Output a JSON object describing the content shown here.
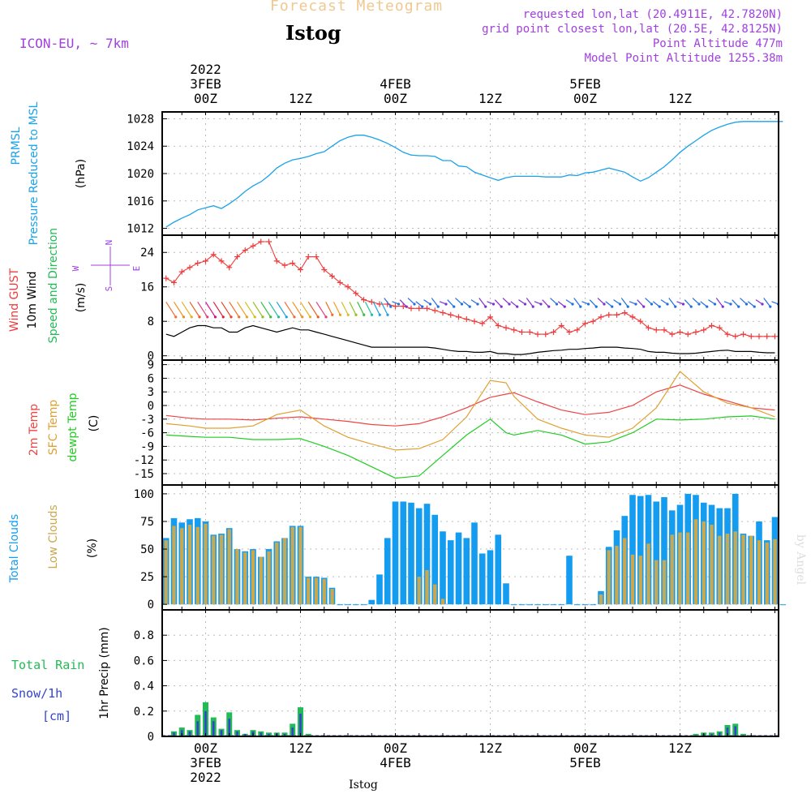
{
  "header": {
    "title": "Forecast Meteogram",
    "station": "Istog",
    "model": "ICON-EU, ~ 7km",
    "requested": "requested lon,lat (20.4911E, 42.7820N)",
    "grid_point": "grid point closest lon,lat (20.5E, 42.8125N)",
    "point_altitude": "Point Altitude 477m",
    "model_altitude": "Model Point Altitude 1255.38m",
    "footer_station": "Istog",
    "credit": "by Angel"
  },
  "colors": {
    "pressure": "#1aa3e8",
    "gust": "#ee3b3b",
    "wind": "#000000",
    "temp2m": "#ee4444",
    "sfc": "#e0a030",
    "dewpt": "#22cc22",
    "total_clouds": "#139cf0",
    "low_clouds": "#c8a850",
    "rain": "#22bb55",
    "snow": "#3344cc",
    "purple": "#a040e0",
    "title": "#f0c890"
  },
  "time_axis": {
    "top_labels": [
      {
        "h": 0,
        "lines": [
          "2022",
          "3FEB",
          "00Z"
        ]
      },
      {
        "h": 12,
        "lines": [
          "12Z"
        ]
      },
      {
        "h": 24,
        "lines": [
          "4FEB",
          "00Z"
        ]
      },
      {
        "h": 36,
        "lines": [
          "12Z"
        ]
      },
      {
        "h": 48,
        "lines": [
          "5FEB",
          "00Z"
        ]
      },
      {
        "h": 60,
        "lines": [
          "12Z"
        ]
      }
    ],
    "bottom_labels": [
      {
        "h": 0,
        "lines": [
          "00Z",
          "3FEB",
          "2022"
        ]
      },
      {
        "h": 12,
        "lines": [
          "12Z"
        ]
      },
      {
        "h": 24,
        "lines": [
          "00Z",
          "4FEB"
        ]
      },
      {
        "h": 36,
        "lines": [
          "12Z"
        ]
      },
      {
        "h": 48,
        "lines": [
          "00Z",
          "5FEB"
        ]
      },
      {
        "h": 60,
        "lines": [
          "12Z"
        ]
      }
    ]
  },
  "chart_data": [
    {
      "type": "line",
      "title": "PRMSL Pressure Reduced to MSL",
      "ylabel": "(hPa)",
      "side_labels": [
        "PRMSL",
        "Pressure Reduced to MSL"
      ],
      "ylim": [
        1011,
        1029
      ],
      "yticks": [
        1012,
        1016,
        1020,
        1024,
        1028
      ],
      "x_hours": [
        -5,
        -4,
        -3,
        -2,
        -1,
        0,
        1,
        2,
        3,
        4,
        5,
        6,
        7,
        8,
        9,
        10,
        11,
        12,
        13,
        14,
        15,
        16,
        17,
        18,
        19,
        20,
        21,
        22,
        23,
        24,
        25,
        26,
        27,
        28,
        29,
        30,
        31,
        32,
        33,
        34,
        35,
        36,
        37,
        38,
        39,
        40,
        41,
        42,
        43,
        44,
        45,
        46,
        47,
        48,
        49,
        50,
        51,
        52,
        53,
        54,
        55,
        56,
        57,
        58,
        59,
        60,
        61,
        62,
        63,
        64,
        65,
        66,
        67,
        68,
        69,
        70,
        71,
        72,
        73
      ],
      "series": [
        {
          "name": "PRMSL",
          "color": "#1aa3e8",
          "values": [
            1012.2,
            1012.9,
            1013.5,
            1014.0,
            1014.7,
            1015.0,
            1015.3,
            1014.9,
            1015.6,
            1016.4,
            1017.4,
            1018.2,
            1018.8,
            1019.7,
            1020.8,
            1021.5,
            1022.0,
            1022.2,
            1022.5,
            1022.9,
            1023.2,
            1024.0,
            1024.8,
            1025.3,
            1025.6,
            1025.6,
            1025.3,
            1024.9,
            1024.4,
            1023.8,
            1023.1,
            1022.7,
            1022.6,
            1022.6,
            1022.5,
            1021.9,
            1021.9,
            1021.1,
            1021.0,
            1020.2,
            1019.8,
            1019.4,
            1019.0,
            1019.4,
            1019.6,
            1019.6,
            1019.6,
            1019.6,
            1019.5,
            1019.5,
            1019.5,
            1019.8,
            1019.7,
            1020.1,
            1020.2,
            1020.5,
            1020.8,
            1020.5,
            1020.2,
            1019.5,
            1018.9,
            1019.4,
            1020.2,
            1021.0,
            1022.0,
            1023.1,
            1024.0,
            1024.8,
            1025.6,
            1026.3,
            1026.8,
            1027.2,
            1027.5,
            1027.6,
            1027.6,
            1027.6,
            1027.6,
            1027.6,
            1027.6
          ]
        }
      ]
    },
    {
      "type": "line",
      "title": "Wind GUST, 10m Wind Speed and Direction",
      "ylabel": "(m/s)",
      "side_labels": [
        "Wind GUST",
        "10m Wind",
        "Speed and Direction"
      ],
      "compass": {
        "n": "N",
        "s": "S",
        "e": "E",
        "w": "W"
      },
      "ylim": [
        -1,
        28
      ],
      "yticks": [
        0,
        8,
        16,
        24
      ],
      "x_hours": [
        -5,
        -4,
        -3,
        -2,
        -1,
        0,
        1,
        2,
        3,
        4,
        5,
        6,
        7,
        8,
        9,
        10,
        11,
        12,
        13,
        14,
        15,
        16,
        17,
        18,
        19,
        20,
        21,
        22,
        23,
        24,
        25,
        26,
        27,
        28,
        29,
        30,
        31,
        32,
        33,
        34,
        35,
        36,
        37,
        38,
        39,
        40,
        41,
        42,
        43,
        44,
        45,
        46,
        47,
        48,
        49,
        50,
        51,
        52,
        53,
        54,
        55,
        56,
        57,
        58,
        59,
        60,
        61,
        62,
        63,
        64,
        65,
        66,
        67,
        68,
        69,
        70,
        71,
        72
      ],
      "series": [
        {
          "name": "Wind GUST",
          "color": "#ee3b3b",
          "values": [
            18,
            17,
            19.5,
            20.5,
            21.5,
            22,
            23.5,
            22,
            20.5,
            23,
            24.5,
            25.5,
            26.5,
            26.5,
            22,
            21,
            21.5,
            20,
            23,
            23,
            20,
            18.5,
            17,
            16,
            14.5,
            13,
            12.5,
            12,
            12,
            11.5,
            11.5,
            11,
            11,
            11,
            10.5,
            10,
            9.5,
            9,
            8.5,
            8,
            7.5,
            9,
            7,
            6.5,
            6,
            5.5,
            5.5,
            5,
            5,
            5.5,
            7,
            5.5,
            6,
            7.5,
            8,
            9,
            9.5,
            9.5,
            10,
            9,
            8,
            6.5,
            6,
            6,
            5,
            5.5,
            5,
            5.5,
            6,
            7,
            6.5,
            5,
            4.5,
            5,
            4.5,
            4.5,
            4.5,
            4.5
          ]
        },
        {
          "name": "10m Wind",
          "color": "#000000",
          "values": [
            5,
            4.5,
            5.5,
            6.5,
            7,
            7,
            6.5,
            6.5,
            5.5,
            5.5,
            6.5,
            7,
            6.5,
            6,
            5.5,
            6,
            6.5,
            6,
            6,
            5.5,
            5,
            4.5,
            4,
            3.5,
            3,
            2.5,
            2,
            2,
            2,
            2,
            2,
            2,
            2,
            2,
            1.8,
            1.5,
            1.2,
            1,
            1,
            0.8,
            0.8,
            1,
            0.5,
            0.5,
            0.3,
            0.3,
            0.5,
            0.8,
            1,
            1.2,
            1.3,
            1.5,
            1.5,
            1.7,
            1.8,
            2,
            2,
            2,
            1.8,
            1.7,
            1.5,
            1,
            0.8,
            0.8,
            0.6,
            0.5,
            0.5,
            0.6,
            0.8,
            1,
            1.2,
            1.3,
            1,
            1,
            1,
            0.8,
            0.7,
            0.7
          ]
        }
      ]
    },
    {
      "type": "line",
      "title": "2m Temp, SFC Temp, dewpt Temp",
      "ylabel": "(C)",
      "side_labels": [
        "2m Temp",
        "SFC Temp",
        "dewpt Temp"
      ],
      "ylim": [
        -17.5,
        10
      ],
      "yticks": [
        -15,
        -12,
        -9,
        -6,
        -3,
        0,
        3,
        6,
        9
      ],
      "x_hours": [
        -5,
        -2,
        0,
        3,
        6,
        9,
        12,
        15,
        18,
        21,
        24,
        27,
        30,
        33,
        36,
        38,
        39,
        42,
        45,
        48,
        51,
        54,
        57,
        60,
        63,
        66,
        69,
        72
      ],
      "series": [
        {
          "name": "2m Temp",
          "color": "#ee4444",
          "values": [
            -2.2,
            -2.8,
            -3,
            -3,
            -3.2,
            -2.8,
            -2.5,
            -3,
            -3.5,
            -4.2,
            -4.5,
            -4,
            -2.5,
            -0.5,
            1.8,
            2.5,
            2.8,
            0.8,
            -1,
            -2,
            -1.5,
            0,
            3,
            4.5,
            2.5,
            1,
            -0.5,
            -1
          ]
        },
        {
          "name": "SFC Temp",
          "color": "#e0a030",
          "values": [
            -4,
            -4.5,
            -5,
            -5,
            -4.5,
            -2,
            -1,
            -4.5,
            -7,
            -8.5,
            -9.8,
            -9.5,
            -7.5,
            -2.5,
            5.5,
            5,
            2,
            -3,
            -5,
            -6.5,
            -7,
            -5,
            -0.5,
            7.5,
            3,
            0.5,
            -0.5,
            -2.5
          ]
        },
        {
          "name": "dewpt Temp",
          "color": "#22cc22",
          "values": [
            -6.5,
            -6.8,
            -7,
            -7,
            -7.5,
            -7.5,
            -7.3,
            -9,
            -11,
            -13.5,
            -16,
            -15.5,
            -11,
            -6.5,
            -3,
            -6,
            -6.5,
            -5.5,
            -6.5,
            -8.5,
            -8,
            -6,
            -3,
            -3.2,
            -3,
            -2.5,
            -2.3,
            -3
          ]
        }
      ]
    },
    {
      "type": "bar",
      "title": "Total Clouds / Low Clouds",
      "ylabel": "(%)",
      "side_labels": [
        "Total Clouds",
        "Low Clouds"
      ],
      "ylim": [
        -5,
        108
      ],
      "yticks": [
        0,
        25,
        50,
        75,
        100
      ],
      "x_hours": [
        -5,
        -4,
        -3,
        -2,
        -1,
        0,
        1,
        2,
        3,
        4,
        5,
        6,
        7,
        8,
        9,
        10,
        11,
        12,
        13,
        14,
        15,
        16,
        17,
        18,
        19,
        20,
        21,
        22,
        23,
        24,
        25,
        26,
        27,
        28,
        29,
        30,
        31,
        32,
        33,
        34,
        35,
        36,
        37,
        38,
        39,
        40,
        41,
        42,
        43,
        44,
        45,
        46,
        47,
        48,
        49,
        50,
        51,
        52,
        53,
        54,
        55,
        56,
        57,
        58,
        59,
        60,
        61,
        62,
        63,
        64,
        65,
        66,
        67,
        68,
        69,
        70,
        71,
        72,
        73
      ],
      "series": [
        {
          "name": "Total Clouds",
          "color": "#139cf0",
          "values": [
            60,
            78,
            74,
            77,
            78,
            75,
            63,
            64,
            69,
            50,
            48,
            50,
            43,
            50,
            57,
            60,
            71,
            71,
            25,
            25,
            24,
            15,
            0,
            0,
            0,
            0,
            4,
            27,
            60,
            93,
            93,
            92,
            87,
            91,
            81,
            66,
            58,
            65,
            60,
            74,
            46,
            49,
            63,
            19,
            0,
            0,
            0,
            0,
            0,
            0,
            0,
            44,
            0,
            0,
            0,
            12,
            52,
            67,
            80,
            99,
            98,
            99,
            93,
            97,
            85,
            90,
            100,
            99,
            92,
            90,
            87,
            87,
            100,
            64,
            62,
            75,
            58,
            79,
            0
          ]
        },
        {
          "name": "Low Clouds",
          "color": "#c8a850",
          "values": [
            58,
            71,
            69,
            72,
            70,
            73,
            62,
            63,
            68,
            50,
            47,
            49,
            43,
            48,
            56,
            60,
            70,
            70,
            24,
            24,
            23,
            14,
            0,
            0,
            0,
            0,
            0,
            0,
            0,
            0,
            0,
            0,
            25,
            31,
            18,
            5,
            0,
            0,
            0,
            0,
            0,
            0,
            0,
            0,
            0,
            0,
            0,
            0,
            0,
            0,
            0,
            0,
            0,
            0,
            0,
            9,
            49,
            53,
            60,
            45,
            44,
            55,
            40,
            40,
            63,
            65,
            65,
            77,
            75,
            72,
            62,
            64,
            66,
            63,
            62,
            58,
            56,
            59,
            0
          ]
        }
      ]
    },
    {
      "type": "bar",
      "title": "1hr Precip (mm)",
      "ylabel": "1hr Precip (mm)",
      "side_labels": [
        "Total  Rain",
        "Snow/1h",
        "[cm]"
      ],
      "ylim": [
        0,
        1.0
      ],
      "yticks": [
        0,
        0.2,
        0.4,
        0.6,
        0.8
      ],
      "ytick_labels": [
        "0",
        "0.2",
        "0.4",
        "0.6",
        "0.8"
      ],
      "x_hours": [
        -4,
        -3,
        -2,
        -1,
        0,
        1,
        2,
        3,
        4,
        5,
        6,
        7,
        8,
        9,
        10,
        11,
        12,
        13,
        62,
        63,
        64,
        65,
        66,
        67,
        68,
        69
      ],
      "series": [
        {
          "name": "Total Rain",
          "color": "#22bb55",
          "values": [
            0.04,
            0.07,
            0.05,
            0.17,
            0.27,
            0.15,
            0.06,
            0.19,
            0.05,
            0.02,
            0.05,
            0.04,
            0.03,
            0.03,
            0.03,
            0.1,
            0.23,
            0.02,
            0.02,
            0.03,
            0.03,
            0.04,
            0.09,
            0.1,
            0.02,
            0.01
          ]
        },
        {
          "name": "Snow/1h",
          "color": "#3344cc",
          "values": [
            0.03,
            0.05,
            0.04,
            0.12,
            0.2,
            0.12,
            0.05,
            0.14,
            0.04,
            0.02,
            0.04,
            0.03,
            0.02,
            0.02,
            0.02,
            0.07,
            0.18,
            0.01,
            0.01,
            0.02,
            0.02,
            0.03,
            0.07,
            0.08,
            0.01,
            0.01
          ]
        }
      ]
    }
  ]
}
